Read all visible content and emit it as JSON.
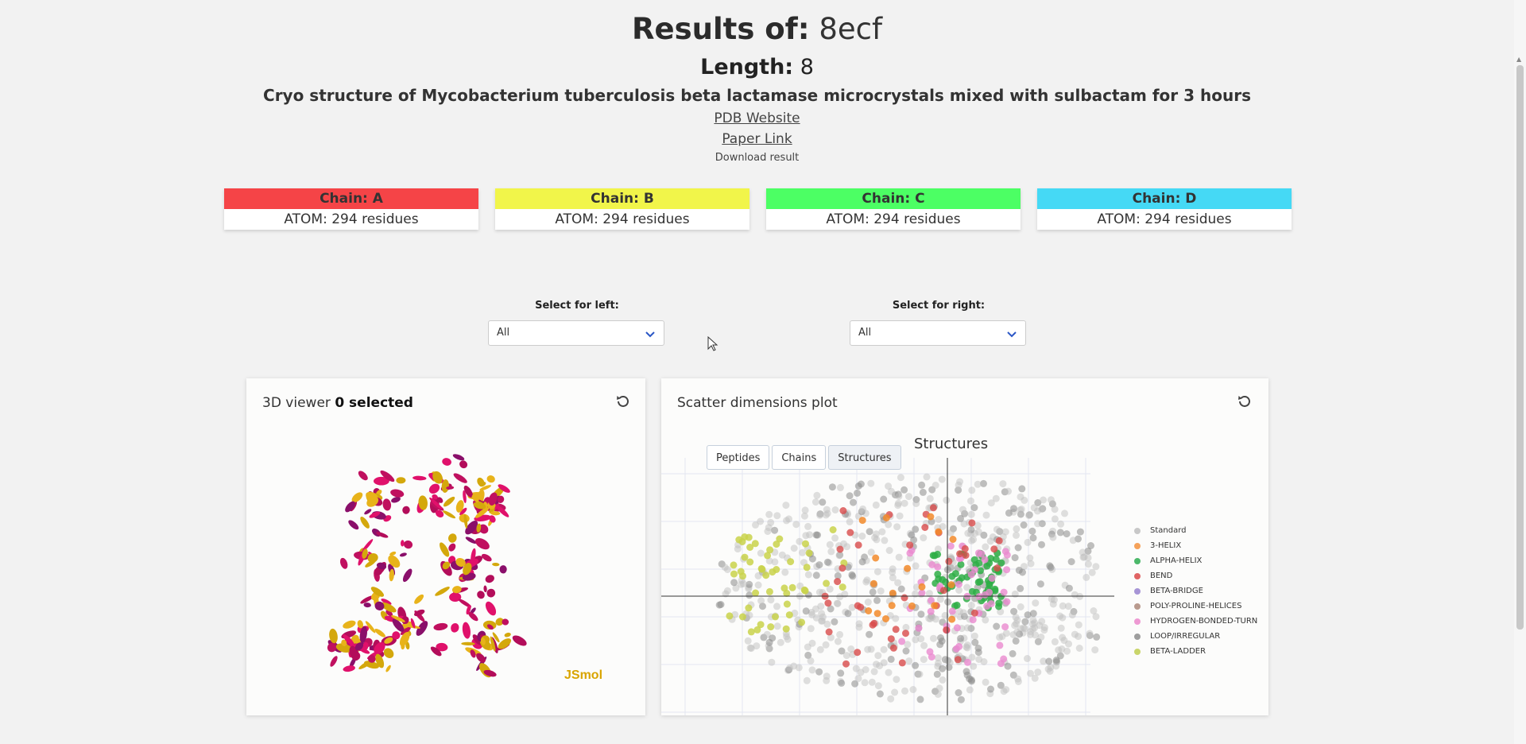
{
  "header": {
    "results_label": "Results of:",
    "results_value": "8ecf",
    "length_label": "Length:",
    "length_value": "8",
    "subtitle": "Cryo structure of Mycobacterium tuberculosis beta lactamase microcrystals mixed with sulbactam for 3 hours",
    "pdb_link": "PDB Website",
    "paper_link": "Paper Link",
    "download": "Download result"
  },
  "chains": [
    {
      "name": "Chain: A",
      "info": "ATOM: 294 residues",
      "color": "#f54447"
    },
    {
      "name": "Chain: B",
      "info": "ATOM: 294 residues",
      "color": "#f1f54a"
    },
    {
      "name": "Chain: C",
      "info": "ATOM: 294 residues",
      "color": "#4cff64"
    },
    {
      "name": "Chain: D",
      "info": "ATOM: 294 residues",
      "color": "#45d9f5"
    }
  ],
  "selectors": {
    "left_label": "Select for left:",
    "left_value": "All",
    "right_label": "Select for right:",
    "right_value": "All"
  },
  "viewer": {
    "title": "3D viewer",
    "selected": "0 selected",
    "watermark": "JSmol",
    "reset_icon": "reset-icon"
  },
  "scatter": {
    "title": "Scatter dimensions plot",
    "tabs": [
      {
        "label": "Peptides"
      },
      {
        "label": "Chains"
      },
      {
        "label": "Structures"
      }
    ],
    "active_tab": "Structures",
    "reset_icon": "reset-icon"
  },
  "chart_data": {
    "type": "scatter",
    "title": "Structures",
    "legend_position": "right",
    "xlim": [
      -1,
      1
    ],
    "ylim": [
      -1,
      1
    ],
    "grid": true,
    "series": [
      {
        "name": "Standard",
        "color": "#c8c8c8"
      },
      {
        "name": "3-HELIX",
        "color": "#f5a25a"
      },
      {
        "name": "ALPHA-HELIX",
        "color": "#4cb86a"
      },
      {
        "name": "BEND",
        "color": "#e06464"
      },
      {
        "name": "BETA-BRIDGE",
        "color": "#a795d6"
      },
      {
        "name": "POLY-PROLINE-HELICES",
        "color": "#b99a8e"
      },
      {
        "name": "HYDROGEN-BONDED-TURN",
        "color": "#ee9ad3"
      },
      {
        "name": "LOOP/IRREGULAR",
        "color": "#9e9e9e"
      },
      {
        "name": "BETA-LADDER",
        "color": "#c9d56a"
      }
    ]
  }
}
